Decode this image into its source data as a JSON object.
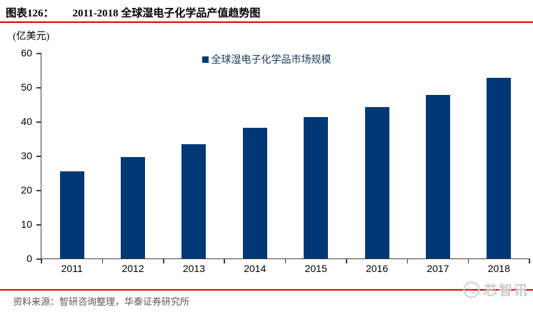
{
  "header": {
    "fig_label": "图表126：",
    "title": "2011-2018 全球湿电子化学品产值趋势图"
  },
  "unit_label": "(亿美元)",
  "chart_data": {
    "type": "bar",
    "title": "2011-2018 全球湿电子化学品产值趋势图",
    "categories": [
      "2011",
      "2012",
      "2013",
      "2014",
      "2015",
      "2016",
      "2017",
      "2018"
    ],
    "values": [
      25.4,
      29.5,
      33.3,
      38.2,
      41.3,
      44.2,
      47.8,
      52.8
    ],
    "xlabel": "",
    "ylabel": "(亿美元)",
    "ylim": [
      0,
      60
    ],
    "yticks": [
      0,
      10,
      20,
      30,
      40,
      50,
      60
    ],
    "grid": false,
    "legend": [
      "全球湿电子化学品市场规模"
    ],
    "legend_position": "top-center",
    "bar_color": "#003876"
  },
  "footer": {
    "source": "资料来源：智研咨询整理，华泰证券研究所",
    "watermark_text": "芯智讯"
  },
  "colors": {
    "bar": "#003876",
    "accent_red": "#e60000",
    "legend_text": "#17375e",
    "source_text": "#595959",
    "watermark": "#cccccc",
    "axis": "#404040"
  }
}
